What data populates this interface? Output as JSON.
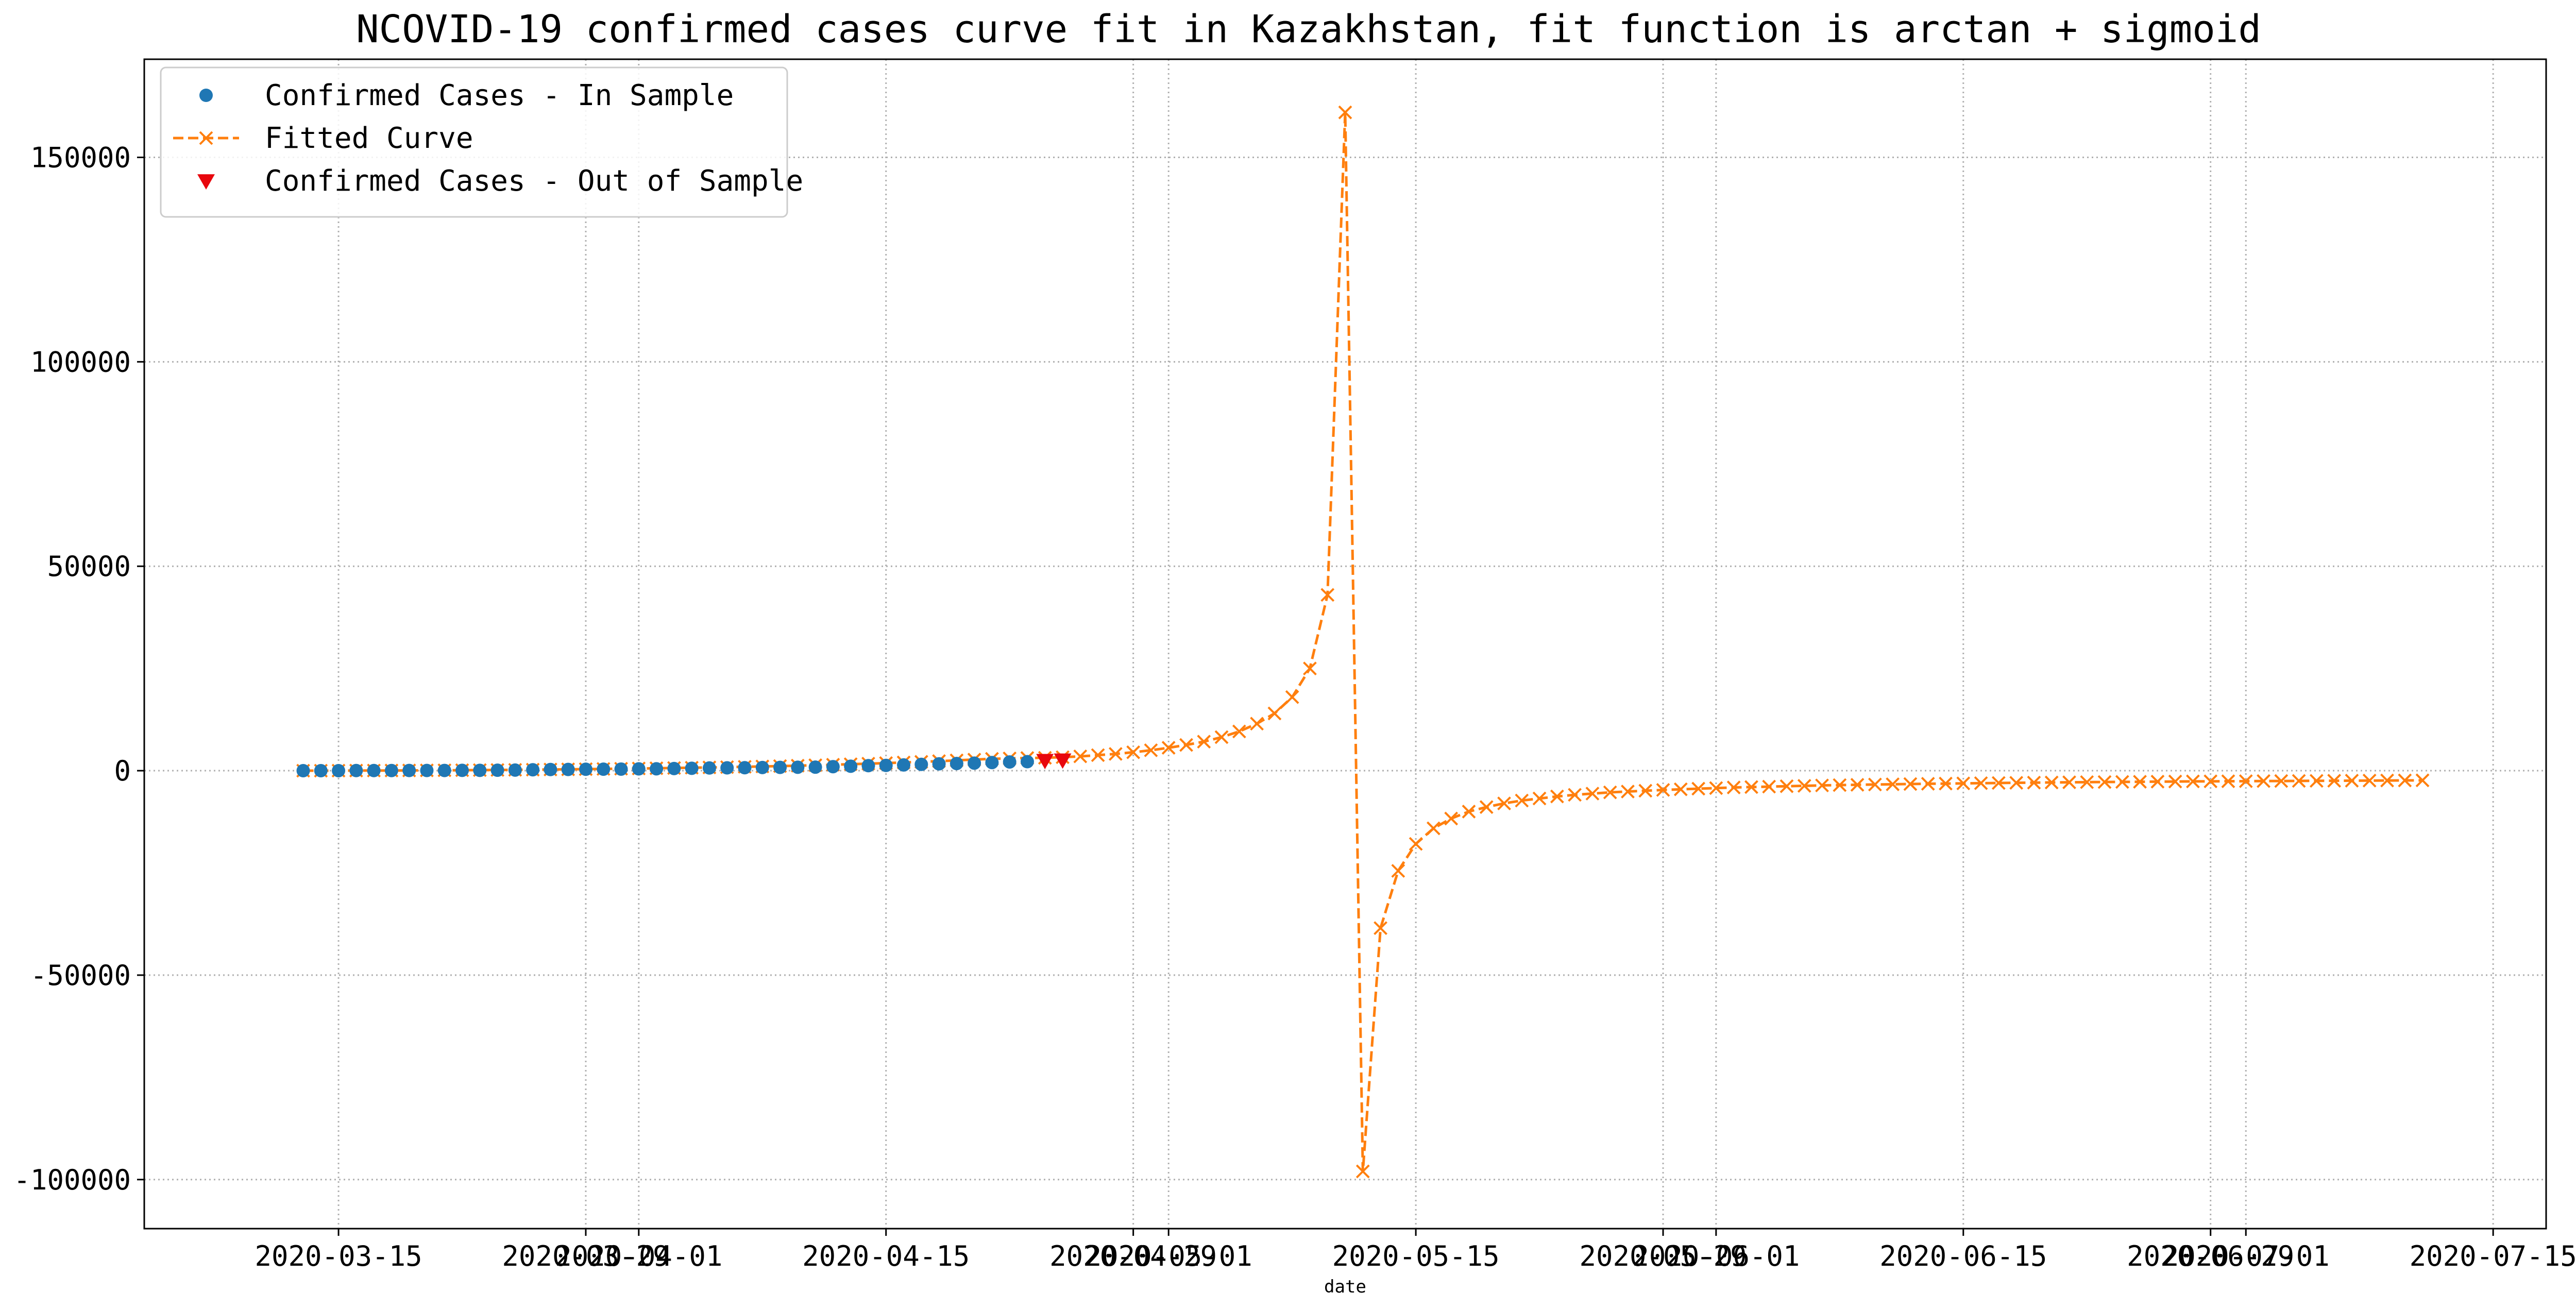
{
  "chart_data": {
    "type": "line",
    "title": "NCOVID-19 confirmed cases curve fit in Kazakhstan, fit function is arctan + sigmoid",
    "xlabel": "date",
    "ylabel": "",
    "x_axis_type": "date",
    "xlim": [
      "2020-03-04",
      "2020-07-18"
    ],
    "ylim": [
      -112000,
      174000
    ],
    "grid": true,
    "grid_style": "dotted",
    "legend_position": "top-left",
    "x_ticks": [
      "2020-03-15",
      "2020-03-29",
      "2020-04-01",
      "2020-04-15",
      "2020-04-29",
      "2020-05-01",
      "2020-05-15",
      "2020-05-29",
      "2020-06-01",
      "2020-06-15",
      "2020-06-29",
      "2020-07-01",
      "2020-07-15"
    ],
    "x_tick_labels": [
      "2020-03-15",
      "2020-03-29",
      "2020-04-01",
      "2020-04-15",
      "2020-04-29",
      "2020-05-01",
      "2020-05-15",
      "2020-05-29",
      "2020-06-01",
      "2020-06-15",
      "2020-06-29",
      "2020-07-01",
      "2020-07-15"
    ],
    "y_ticks": [
      -100000,
      -50000,
      0,
      50000,
      100000,
      150000
    ],
    "y_tick_labels": [
      "-100000",
      "-50000",
      "0",
      "50000",
      "100000",
      "150000"
    ],
    "series": [
      {
        "name": "Confirmed Cases - In Sample",
        "kind": "scatter",
        "marker": "circle",
        "color": "#1f77b4",
        "x": [
          "2020-03-13",
          "2020-03-14",
          "2020-03-15",
          "2020-03-16",
          "2020-03-17",
          "2020-03-18",
          "2020-03-19",
          "2020-03-20",
          "2020-03-21",
          "2020-03-22",
          "2020-03-23",
          "2020-03-24",
          "2020-03-25",
          "2020-03-26",
          "2020-03-27",
          "2020-03-28",
          "2020-03-29",
          "2020-03-30",
          "2020-03-31",
          "2020-04-01",
          "2020-04-02",
          "2020-04-03",
          "2020-04-04",
          "2020-04-05",
          "2020-04-06",
          "2020-04-07",
          "2020-04-08",
          "2020-04-09",
          "2020-04-10",
          "2020-04-11",
          "2020-04-12",
          "2020-04-13",
          "2020-04-14",
          "2020-04-15",
          "2020-04-16",
          "2020-04-17",
          "2020-04-18",
          "2020-04-19",
          "2020-04-20",
          "2020-04-21",
          "2020-04-22",
          "2020-04-23"
        ],
        "y": [
          6,
          9,
          10,
          33,
          35,
          44,
          53,
          57,
          60,
          79,
          81,
          111,
          150,
          228,
          284,
          302,
          348,
          372,
          391,
          441,
          464,
          531,
          585,
          662,
          697,
          727,
          781,
          812,
          844,
          865,
          990,
          1091,
          1232,
          1295,
          1402,
          1546,
          1676,
          1757,
          1852,
          1995,
          2135,
          2207
        ]
      },
      {
        "name": "Fitted Curve",
        "kind": "line",
        "marker": "x",
        "line_style": "dashed",
        "color": "#ff7f0e",
        "x": [
          "2020-03-13",
          "2020-03-14",
          "2020-03-15",
          "2020-03-16",
          "2020-03-17",
          "2020-03-18",
          "2020-03-19",
          "2020-03-20",
          "2020-03-21",
          "2020-03-22",
          "2020-03-23",
          "2020-03-24",
          "2020-03-25",
          "2020-03-26",
          "2020-03-27",
          "2020-03-28",
          "2020-03-29",
          "2020-03-30",
          "2020-03-31",
          "2020-04-01",
          "2020-04-02",
          "2020-04-03",
          "2020-04-04",
          "2020-04-05",
          "2020-04-06",
          "2020-04-07",
          "2020-04-08",
          "2020-04-09",
          "2020-04-10",
          "2020-04-11",
          "2020-04-12",
          "2020-04-13",
          "2020-04-14",
          "2020-04-15",
          "2020-04-16",
          "2020-04-17",
          "2020-04-18",
          "2020-04-19",
          "2020-04-20",
          "2020-04-21",
          "2020-04-22",
          "2020-04-23",
          "2020-04-24",
          "2020-04-25",
          "2020-04-26",
          "2020-04-27",
          "2020-04-28",
          "2020-04-29",
          "2020-04-30",
          "2020-05-01",
          "2020-05-02",
          "2020-05-03",
          "2020-05-04",
          "2020-05-05",
          "2020-05-06",
          "2020-05-07",
          "2020-05-08",
          "2020-05-09",
          "2020-05-10",
          "2020-05-11",
          "2020-05-12",
          "2020-05-13",
          "2020-05-14",
          "2020-05-15",
          "2020-05-16",
          "2020-05-17",
          "2020-05-18",
          "2020-05-19",
          "2020-05-20",
          "2020-05-21",
          "2020-05-22",
          "2020-05-23",
          "2020-05-24",
          "2020-05-25",
          "2020-05-26",
          "2020-05-27",
          "2020-05-28",
          "2020-05-29",
          "2020-05-30",
          "2020-05-31",
          "2020-06-01",
          "2020-06-02",
          "2020-06-03",
          "2020-06-04",
          "2020-06-05",
          "2020-06-06",
          "2020-06-07",
          "2020-06-08",
          "2020-06-09",
          "2020-06-10",
          "2020-06-11",
          "2020-06-12",
          "2020-06-13",
          "2020-06-14",
          "2020-06-15",
          "2020-06-16",
          "2020-06-17",
          "2020-06-18",
          "2020-06-19",
          "2020-06-20",
          "2020-06-21",
          "2020-06-22",
          "2020-06-23",
          "2020-06-24",
          "2020-06-25",
          "2020-06-26",
          "2020-06-27",
          "2020-06-28",
          "2020-06-29",
          "2020-06-30",
          "2020-07-01",
          "2020-07-02",
          "2020-07-03",
          "2020-07-04",
          "2020-07-05",
          "2020-07-06",
          "2020-07-07",
          "2020-07-08",
          "2020-07-09",
          "2020-07-10",
          "2020-07-11"
        ],
        "y": [
          0,
          0,
          10,
          30,
          40,
          50,
          60,
          80,
          100,
          120,
          150,
          180,
          210,
          250,
          290,
          330,
          380,
          430,
          480,
          540,
          600,
          660,
          730,
          800,
          870,
          950,
          1040,
          1130,
          1230,
          1340,
          1460,
          1580,
          1720,
          1860,
          2010,
          2170,
          2340,
          2520,
          2710,
          2900,
          3000,
          3100,
          3150,
          3300,
          3500,
          3800,
          4100,
          4500,
          5000,
          5600,
          6300,
          7100,
          8200,
          9600,
          11500,
          14000,
          18000,
          25000,
          43000,
          161000,
          -98000,
          -38500,
          -24500,
          -17900,
          -14100,
          -11700,
          -10000,
          -8900,
          -8000,
          -7300,
          -6800,
          -6300,
          -5900,
          -5600,
          -5300,
          -5100,
          -4900,
          -4700,
          -4550,
          -4400,
          -4250,
          -4100,
          -4000,
          -3900,
          -3800,
          -3700,
          -3600,
          -3520,
          -3450,
          -3380,
          -3320,
          -3260,
          -3200,
          -3150,
          -3100,
          -3050,
          -3000,
          -2960,
          -2920,
          -2880,
          -2840,
          -2800,
          -2770,
          -2740,
          -2710,
          -2680,
          -2650,
          -2620,
          -2600,
          -2580,
          -2560,
          -2540,
          -2520,
          -2500,
          -2480,
          -2460,
          -2440,
          -2420,
          -2400,
          -2380,
          -2360
        ]
      },
      {
        "name": "Confirmed Cases - Out of Sample",
        "kind": "scatter",
        "marker": "triangle-down",
        "color": "#e8070d",
        "x": [
          "2020-04-24",
          "2020-04-25"
        ],
        "y": [
          2500,
          2600
        ]
      }
    ]
  }
}
